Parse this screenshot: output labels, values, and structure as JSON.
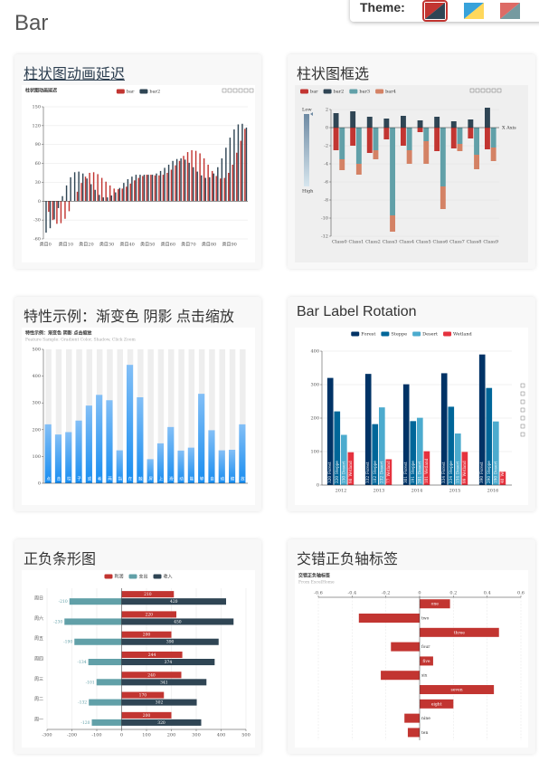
{
  "page": {
    "title": "Bar",
    "theme_label": "Theme:"
  },
  "cards": [
    {
      "title": "柱状图动画延迟"
    },
    {
      "title": "柱状图框选"
    },
    {
      "title": "特性示例：渐变色 阴影 点击缩放"
    },
    {
      "title": "Bar Label Rotation"
    },
    {
      "title": "正负条形图"
    },
    {
      "title": "交错正负轴标签"
    }
  ],
  "chart_data": [
    {
      "type": "bar",
      "title": "柱状图动画延迟",
      "legend": "top",
      "grid": true,
      "categories": [
        "类目0",
        null,
        null,
        null,
        null,
        "类目10",
        null,
        null,
        null,
        null,
        "类目20",
        null,
        null,
        null,
        null,
        "类目30",
        null,
        null,
        null,
        null,
        "类目40",
        null,
        null,
        null,
        null,
        "类目50",
        null,
        null,
        null,
        null,
        "类目60",
        null,
        null,
        null,
        null,
        "类目70",
        null,
        null,
        null,
        null,
        "类目80",
        null,
        null,
        null,
        null,
        "类目90",
        null,
        null,
        null,
        null
      ],
      "ylim": [
        -60,
        150
      ],
      "yticks": [
        -60,
        -30,
        0,
        30,
        60,
        90,
        120,
        150
      ],
      "series": [
        {
          "name": "bar",
          "color": "#c23531",
          "values": [
            0,
            -17,
            -30,
            -36,
            -35,
            -28,
            -16,
            0,
            15,
            29,
            39,
            45,
            46,
            43,
            37,
            31,
            25,
            20,
            19,
            20,
            23,
            28,
            33,
            37,
            40,
            42,
            42,
            41,
            41,
            42,
            45,
            50,
            57,
            64,
            72,
            78,
            81,
            80,
            76,
            68,
            58,
            48,
            40,
            36,
            37,
            45,
            58,
            77,
            96,
            115
          ]
        },
        {
          "name": "bar2",
          "color": "#2f4554",
          "values": [
            -50,
            -43,
            -29,
            -11,
            8,
            25,
            38,
            46,
            47,
            44,
            36,
            27,
            18,
            10,
            6,
            6,
            9,
            14,
            21,
            29,
            35,
            39,
            42,
            42,
            42,
            42,
            42,
            44,
            48,
            53,
            58,
            64,
            67,
            68,
            66,
            61,
            54,
            47,
            41,
            37,
            38,
            44,
            54,
            68,
            85,
            101,
            114,
            122,
            123,
            117
          ]
        }
      ]
    },
    {
      "type": "bar",
      "legend": "top-left",
      "grid": true,
      "x_label": "X Axis",
      "visual_map": {
        "low_label": "Low",
        "high_label": "High"
      },
      "categories": [
        "Class0",
        "Class1",
        "Class2",
        "Class3",
        "Class4",
        "Class5",
        "Class6",
        "Class7",
        "Class8",
        "Class9"
      ],
      "ylim": [
        -12,
        2
      ],
      "yticks": [
        -12,
        -10,
        -8,
        -6,
        -4,
        -2,
        0,
        2
      ],
      "series": [
        {
          "name": "bar",
          "color": "#c23531",
          "stack_group": 0,
          "values": [
            -2.5,
            -2.0,
            -2.8,
            -1.3,
            -2.0,
            -0.5,
            -2.6,
            -2.3,
            -1.2,
            -2.4
          ]
        },
        {
          "name": "bar2",
          "color": "#2f4554",
          "stack_group": 0,
          "values": [
            1.6,
            1.8,
            1.2,
            1.0,
            1.3,
            0.8,
            1.2,
            0.7,
            0.9,
            2.2
          ]
        },
        {
          "name": "bar3",
          "color": "#61a0a8",
          "stack_group": 1,
          "values": [
            -3.5,
            -4.0,
            -2.5,
            -9.7,
            -2.5,
            -1.5,
            -6.5,
            -1.8,
            -3.0,
            -2.2
          ]
        },
        {
          "name": "bar4",
          "color": "#d48265",
          "stack_group": 1,
          "values": [
            -1.2,
            -1.2,
            -1.0,
            -1.8,
            -1.5,
            -2.5,
            -2.5,
            -0.8,
            -1.6,
            -1.5
          ]
        }
      ]
    },
    {
      "type": "bar",
      "title": "特性示例：渐变色 阴影 点击缩放",
      "subtitle": "Feature Sample: Gradient Color, Shadow, Click Zoom",
      "shadow_bars": true,
      "category_labels": "inside",
      "grid": false,
      "categories": [
        "点",
        "击",
        "柱",
        "子",
        "或",
        "者",
        "两",
        "指",
        "在",
        "触",
        "屏",
        "上",
        "滑",
        "动",
        "能",
        "够",
        "自",
        "动",
        "缩",
        "放"
      ],
      "ylim": [
        0,
        500
      ],
      "yticks": [
        0,
        100,
        200,
        300,
        400,
        500
      ],
      "series": [
        {
          "color": [
            "#83bff6",
            "#188df0"
          ],
          "values": [
            220,
            182,
            191,
            234,
            290,
            330,
            310,
            123,
            442,
            321,
            90,
            149,
            210,
            122,
            133,
            334,
            198,
            123,
            125,
            220
          ]
        }
      ]
    },
    {
      "type": "bar",
      "legend": "top",
      "grid": true,
      "categories": [
        "2012",
        "2013",
        "2014",
        "2015",
        "2016"
      ],
      "ylim": [
        0,
        400
      ],
      "yticks": [
        0,
        100,
        200,
        300,
        400
      ],
      "series": [
        {
          "name": "Forest",
          "color": "#003366",
          "label": "rotate",
          "values": [
            320,
            332,
            301,
            334,
            390
          ]
        },
        {
          "name": "Steppe",
          "color": "#006699",
          "label": "rotate",
          "values": [
            220,
            182,
            191,
            234,
            290
          ]
        },
        {
          "name": "Desert",
          "color": "#4cabce",
          "label": "rotate",
          "values": [
            150,
            232,
            201,
            154,
            190
          ]
        },
        {
          "name": "Wetland",
          "color": "#e5323e",
          "label": "rotate",
          "values": [
            98,
            77,
            101,
            99,
            40
          ]
        }
      ]
    },
    {
      "type": "bar",
      "orientation": "horizontal",
      "legend": "top",
      "grid": true,
      "categories": [
        "周一",
        "周二",
        "周三",
        "周四",
        "周五",
        "周六",
        "周日"
      ],
      "xlim": [
        -300,
        500
      ],
      "xticks": [
        -300,
        -200,
        -100,
        0,
        100,
        200,
        300,
        400,
        500
      ],
      "series": [
        {
          "name": "利润",
          "color": "#c23531",
          "stack_group": 0,
          "label": "inside",
          "values": [
            200,
            170,
            240,
            244,
            200,
            220,
            210
          ]
        },
        {
          "name": "支出",
          "color": "#61a0a8",
          "stack_group": 1,
          "label": "left",
          "values": [
            -120,
            -132,
            -101,
            -134,
            -190,
            -230,
            -210
          ]
        },
        {
          "name": "收入",
          "color": "#2f4554",
          "stack_group": 1,
          "label": "inside",
          "values": [
            320,
            302,
            341,
            374,
            390,
            450,
            420
          ]
        }
      ]
    },
    {
      "type": "bar",
      "orientation": "horizontal",
      "title": "交错正负轴标签",
      "subtitle": "From ExcelHome",
      "x_axis_position": "top",
      "grid": "dashed",
      "category_labels": "beside",
      "categories": [
        "ten",
        "nine",
        "eight",
        "seven",
        "six",
        "five",
        "four",
        "three",
        "two",
        "one"
      ],
      "xlim": [
        -0.6,
        0.6
      ],
      "xticks": [
        -0.6,
        -0.4,
        -0.2,
        0,
        0.2,
        0.4,
        0.6
      ],
      "series": [
        {
          "color": "#c23531",
          "values": [
            -0.07,
            -0.09,
            0.2,
            0.44,
            -0.23,
            0.08,
            -0.17,
            0.47,
            -0.36,
            0.18
          ]
        }
      ]
    }
  ]
}
